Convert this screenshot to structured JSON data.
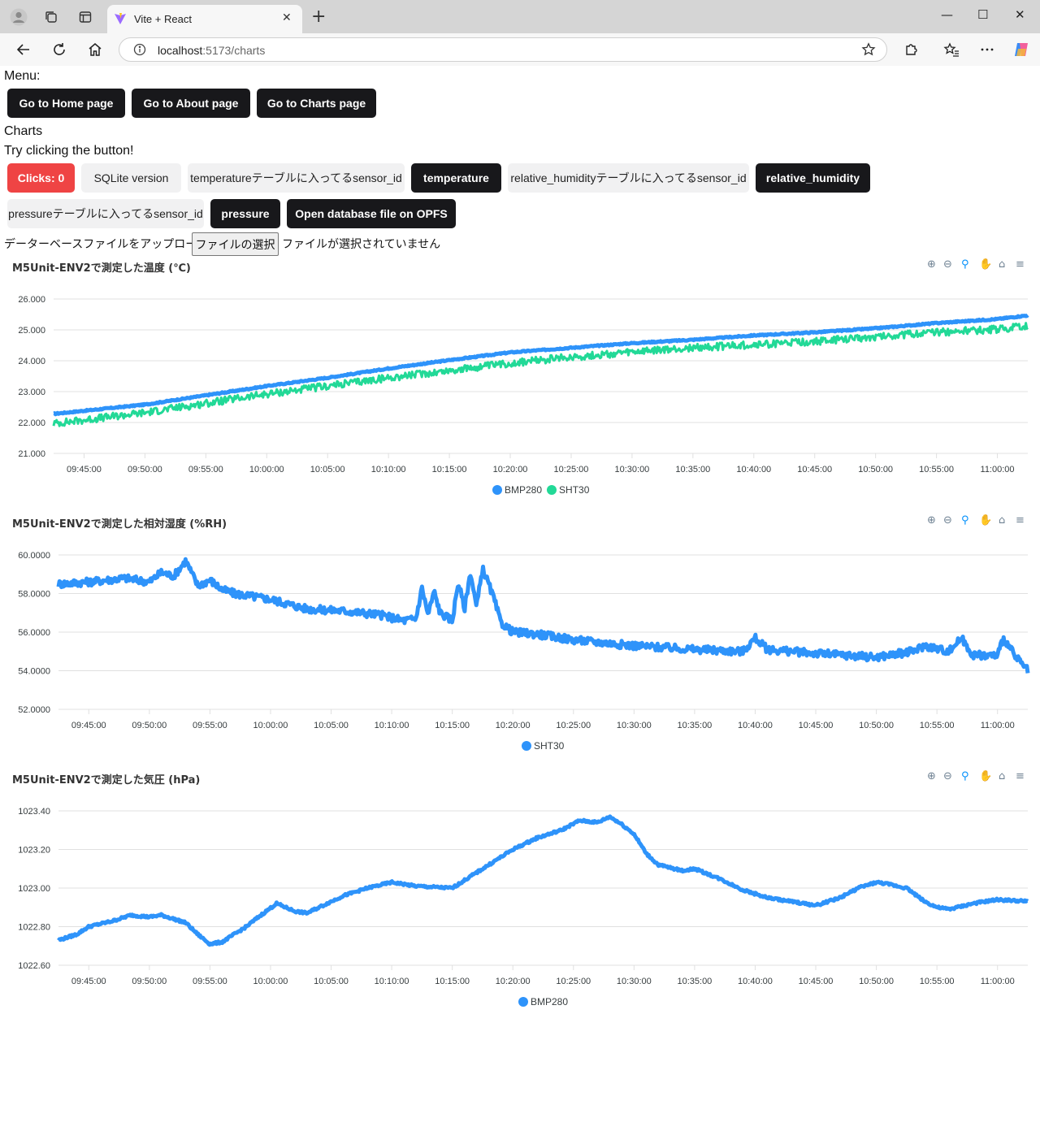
{
  "browser": {
    "tab_title": "Vite + React",
    "url_host": "localhost",
    "url_rest": ":5173/charts",
    "close_icon": "close-icon",
    "new_tab_icon": "plus-icon"
  },
  "page": {
    "menu_label": "Menu:",
    "nav_buttons": [
      "Go to Home page",
      "Go to About page",
      "Go to Charts page"
    ],
    "section_title": "Charts",
    "hint": "Try clicking the button!",
    "action_buttons": {
      "clicks": "Clicks: 0",
      "sqlite_version": "SQLite version",
      "temp_sensor_id": "temperatureテーブルに入ってるsensor_id",
      "temperature": "temperature",
      "hum_sensor_id": "relative_humidityテーブルに入ってるsensor_id",
      "relative_humidity": "relative_humidity",
      "press_sensor_id": "pressureテーブルに入ってるsensor_id",
      "pressure": "pressure",
      "open_opfs": "Open database file on OPFS"
    },
    "upload_label": "データーベースファイルをアップロードする",
    "file_button": "ファイルの選択",
    "file_status": "ファイルが選択されていません"
  },
  "colors": {
    "bmp280": "#2e93fa",
    "sht30": "#22d997",
    "sht30_humidity": "#2e93fa",
    "accent_red": "#ef4444",
    "dark_button": "#18181b"
  },
  "chart_data": [
    {
      "type": "line",
      "title": "M5Unit-ENV2で測定した温度 (℃)",
      "x_ticks": [
        "09:45:00",
        "09:50:00",
        "09:55:00",
        "10:00:00",
        "10:05:00",
        "10:10:00",
        "10:15:00",
        "10:20:00",
        "10:25:00",
        "10:30:00",
        "10:35:00",
        "10:40:00",
        "10:45:00",
        "10:50:00",
        "10:55:00",
        "11:00:00"
      ],
      "x_range": [
        "09:42:30",
        "11:02:30"
      ],
      "y_ticks": [
        "26.000",
        "25.000",
        "24.000",
        "23.000",
        "22.000",
        "21.000"
      ],
      "ylim": [
        21,
        26
      ],
      "grid": true,
      "legend_position": "bottom-center",
      "series": [
        {
          "name": "BMP280",
          "x": [
            "09:42:30",
            "09:45:00",
            "09:50:00",
            "09:55:00",
            "10:00:00",
            "10:05:00",
            "10:10:00",
            "10:15:00",
            "10:20:00",
            "10:25:00",
            "10:30:00",
            "10:35:00",
            "10:40:00",
            "10:45:00",
            "10:50:00",
            "10:55:00",
            "11:00:00",
            "11:02:30"
          ],
          "values": [
            22.28,
            22.38,
            22.58,
            22.88,
            23.18,
            23.45,
            23.75,
            24.02,
            24.27,
            24.42,
            24.57,
            24.68,
            24.82,
            24.92,
            25.05,
            25.22,
            25.35,
            25.47
          ],
          "noise": 0.02
        },
        {
          "name": "SHT30",
          "x": [
            "09:42:30",
            "09:45:00",
            "09:50:00",
            "09:55:00",
            "10:00:00",
            "10:05:00",
            "10:10:00",
            "10:15:00",
            "10:20:00",
            "10:25:00",
            "10:30:00",
            "10:35:00",
            "10:40:00",
            "10:45:00",
            "10:50:00",
            "10:55:00",
            "11:00:00",
            "11:02:30"
          ],
          "values": [
            21.97,
            22.08,
            22.32,
            22.62,
            22.92,
            23.18,
            23.45,
            23.68,
            23.92,
            24.12,
            24.27,
            24.42,
            24.52,
            24.62,
            24.78,
            24.92,
            25.02,
            25.12
          ],
          "noise": 0.12
        }
      ]
    },
    {
      "type": "line",
      "title": "M5Unit-ENV2で測定した相対湿度 (%RH)",
      "x_ticks": [
        "09:45:00",
        "09:50:00",
        "09:55:00",
        "10:00:00",
        "10:05:00",
        "10:10:00",
        "10:15:00",
        "10:20:00",
        "10:25:00",
        "10:30:00",
        "10:35:00",
        "10:40:00",
        "10:45:00",
        "10:50:00",
        "10:55:00",
        "11:00:00"
      ],
      "x_range": [
        "09:42:30",
        "11:02:30"
      ],
      "y_ticks": [
        "60.0000",
        "58.0000",
        "56.0000",
        "54.0000",
        "52.0000"
      ],
      "ylim": [
        52,
        60
      ],
      "grid": true,
      "legend_position": "bottom-center",
      "series": [
        {
          "name": "SHT30",
          "x": [
            "09:42:30",
            "09:45:00",
            "09:48:00",
            "09:50:00",
            "09:51:00",
            "09:52:00",
            "09:53:00",
            "09:54:00",
            "09:55:00",
            "09:56:00",
            "09:57:00",
            "10:00:00",
            "10:03:00",
            "10:06:00",
            "10:09:00",
            "10:11:00",
            "10:12:00",
            "10:12:30",
            "10:13:00",
            "10:13:30",
            "10:14:00",
            "10:15:00",
            "10:15:30",
            "10:16:00",
            "10:16:30",
            "10:17:00",
            "10:17:30",
            "10:18:00",
            "10:18:30",
            "10:19:00",
            "10:20:00",
            "10:22:00",
            "10:25:00",
            "10:30:00",
            "10:35:00",
            "10:39:00",
            "10:40:00",
            "10:41:00",
            "10:45:00",
            "10:50:00",
            "10:53:00",
            "10:54:00",
            "10:56:00",
            "10:57:00",
            "10:58:00",
            "11:00:00",
            "11:00:30",
            "11:01:30",
            "11:02:30"
          ],
          "values": [
            58.5,
            58.6,
            58.8,
            58.6,
            59.1,
            58.9,
            59.7,
            58.4,
            58.7,
            58.2,
            58.0,
            57.7,
            57.2,
            57.1,
            56.9,
            56.6,
            56.7,
            58.3,
            56.9,
            58.1,
            57.0,
            56.6,
            58.6,
            57.2,
            59.1,
            57.3,
            59.3,
            58.5,
            57.6,
            56.5,
            56.0,
            55.9,
            55.6,
            55.3,
            55.1,
            55.0,
            55.7,
            55.1,
            54.9,
            54.7,
            55.0,
            55.3,
            55.0,
            55.7,
            54.8,
            54.8,
            55.7,
            54.7,
            54.0
          ],
          "noise": 0.2
        }
      ]
    },
    {
      "type": "line",
      "title": "M5Unit-ENV2で測定した気圧 (hPa)",
      "x_ticks": [
        "09:45:00",
        "09:50:00",
        "09:55:00",
        "10:00:00",
        "10:05:00",
        "10:10:00",
        "10:15:00",
        "10:20:00",
        "10:25:00",
        "10:30:00",
        "10:35:00",
        "10:40:00",
        "10:45:00",
        "10:50:00",
        "10:55:00",
        "11:00:00"
      ],
      "x_range": [
        "09:42:30",
        "11:02:30"
      ],
      "y_ticks": [
        "1023.40",
        "1023.20",
        "1023.00",
        "1022.80",
        "1022.60"
      ],
      "ylim": [
        1022.6,
        1023.4
      ],
      "grid": true,
      "legend_position": "bottom-center",
      "series": [
        {
          "name": "BMP280",
          "x": [
            "09:42:30",
            "09:44:00",
            "09:45:00",
            "09:47:00",
            "09:48:30",
            "09:50:00",
            "09:51:00",
            "09:53:00",
            "09:54:00",
            "09:55:00",
            "09:56:00",
            "09:58:00",
            "09:59:00",
            "10:00:30",
            "10:02:00",
            "10:03:00",
            "10:04:00",
            "10:06:00",
            "10:08:00",
            "10:10:00",
            "10:12:00",
            "10:15:00",
            "10:16:00",
            "10:18:00",
            "10:20:00",
            "10:22:00",
            "10:24:00",
            "10:25:30",
            "10:27:00",
            "10:28:00",
            "10:29:00",
            "10:30:00",
            "10:31:00",
            "10:32:00",
            "10:34:00",
            "10:35:00",
            "10:37:00",
            "10:39:00",
            "10:41:00",
            "10:43:00",
            "10:45:00",
            "10:47:00",
            "10:48:30",
            "10:50:00",
            "10:51:00",
            "10:52:30",
            "10:54:00",
            "10:55:00",
            "10:56:00",
            "10:58:00",
            "11:00:00",
            "11:02:30"
          ],
          "values": [
            1022.73,
            1022.76,
            1022.8,
            1022.83,
            1022.86,
            1022.85,
            1022.86,
            1022.82,
            1022.76,
            1022.71,
            1022.72,
            1022.8,
            1022.85,
            1022.92,
            1022.88,
            1022.87,
            1022.9,
            1022.96,
            1023.0,
            1023.03,
            1023.01,
            1023.0,
            1023.04,
            1023.12,
            1023.2,
            1023.26,
            1023.3,
            1023.35,
            1023.34,
            1023.37,
            1023.33,
            1023.28,
            1023.18,
            1023.12,
            1023.09,
            1023.1,
            1023.05,
            1022.99,
            1022.95,
            1022.93,
            1022.91,
            1022.95,
            1023.0,
            1023.03,
            1023.02,
            1023.0,
            1022.93,
            1022.9,
            1022.89,
            1022.92,
            1022.94,
            1022.93
          ],
          "noise": 0.006
        }
      ]
    }
  ]
}
